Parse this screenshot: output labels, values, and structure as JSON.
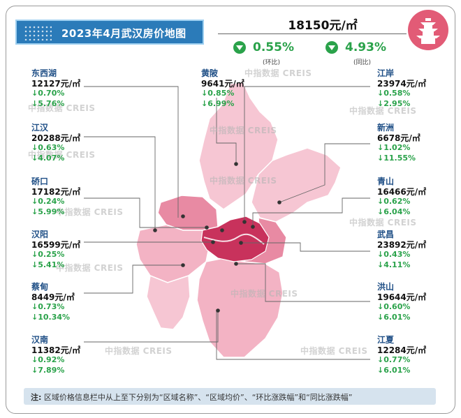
{
  "title": "2023年4月武汉房价地图",
  "overall": {
    "price": "18150元/㎡",
    "mom": {
      "value": "0.55%",
      "label": "(环比)"
    },
    "yoy": {
      "value": "4.93%",
      "label": "(同比)"
    }
  },
  "watermark": "中指数据 CREIS",
  "districts": [
    {
      "name": "东西湖",
      "price": "12127元/㎡",
      "mom": "↓0.70%",
      "yoy": "↓5.76%"
    },
    {
      "name": "江汉",
      "price": "20288元/㎡",
      "mom": "↓0.63%",
      "yoy": "↓4.07%"
    },
    {
      "name": "硚口",
      "price": "17182元/㎡",
      "mom": "↓0.24%",
      "yoy": "↓5.99%"
    },
    {
      "name": "汉阳",
      "price": "16599元/㎡",
      "mom": "↓0.25%",
      "yoy": "↓5.41%"
    },
    {
      "name": "蔡甸",
      "price": "8449元/㎡",
      "mom": "↓0.73%",
      "yoy": "↓10.34%"
    },
    {
      "name": "汉南",
      "price": "11382元/㎡",
      "mom": "↓0.92%",
      "yoy": "↓7.89%"
    },
    {
      "name": "黄陂",
      "price": "9641元/㎡",
      "mom": "↓0.85%",
      "yoy": "↓6.99%"
    },
    {
      "name": "江岸",
      "price": "23974元/㎡",
      "mom": "↓0.58%",
      "yoy": "↓2.95%"
    },
    {
      "name": "新洲",
      "price": "6678元/㎡",
      "mom": "↓1.02%",
      "yoy": "↓11.55%"
    },
    {
      "name": "青山",
      "price": "16466元/㎡",
      "mom": "↓0.62%",
      "yoy": "↓6.04%"
    },
    {
      "name": "武昌",
      "price": "23892元/㎡",
      "mom": "↓0.43%",
      "yoy": "↓4.11%"
    },
    {
      "name": "洪山",
      "price": "19644元/㎡",
      "mom": "↓0.60%",
      "yoy": "↓6.01%"
    },
    {
      "name": "江夏",
      "price": "12284元/㎡",
      "mom": "↓0.77%",
      "yoy": "↓6.01%"
    }
  ],
  "note": {
    "prefix": "注:",
    "text": "区域价格信息栏中从上至下分别为“区域名称”、“区域均价”、“环比涨跌幅”和“同比涨跌幅”"
  },
  "colors": {
    "banner": "#2b7bb9",
    "district_name": "#1f4f86",
    "decline": "#2aa24a",
    "map_core": "#c8325c",
    "map_mid": "#e88aa3",
    "map_light": "#f6c6d3",
    "note_bg": "#d6e3ee"
  }
}
